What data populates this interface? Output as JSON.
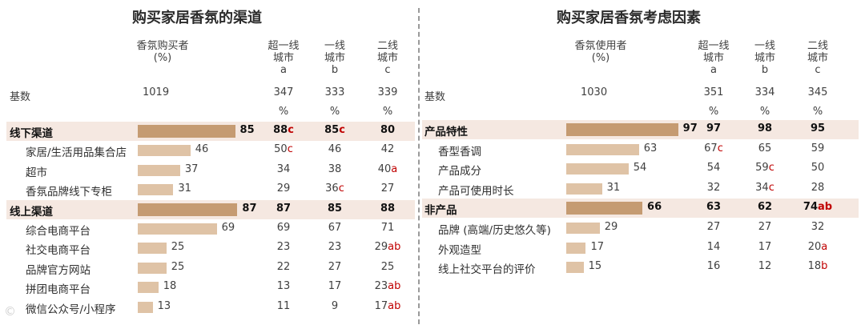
{
  "chart_data": [
    {
      "type": "bar",
      "title": "购买家居香氛的渠道",
      "column_headers": [
        "香氛购买者\n(%)",
        "超一线\n城市\na",
        "一线\n城市\nb",
        "二线\n城市\nc"
      ],
      "basis_label": "基数",
      "basis_values": [
        "1019",
        "347",
        "333",
        "339"
      ],
      "pct_marks": [
        "%",
        "%",
        "%"
      ],
      "rows": [
        {
          "label": "线下渠道",
          "main": true,
          "value": 85,
          "cells": [
            {
              "v": "88",
              "s": "c"
            },
            {
              "v": "85",
              "s": "c"
            },
            {
              "v": "80",
              "s": ""
            }
          ]
        },
        {
          "label": "家居/生活用品集合店",
          "main": false,
          "value": 46,
          "cells": [
            {
              "v": "50",
              "s": "c"
            },
            {
              "v": "46",
              "s": ""
            },
            {
              "v": "42",
              "s": ""
            }
          ]
        },
        {
          "label": "超市",
          "main": false,
          "value": 37,
          "cells": [
            {
              "v": "34",
              "s": ""
            },
            {
              "v": "38",
              "s": ""
            },
            {
              "v": "40",
              "s": "a"
            }
          ]
        },
        {
          "label": "香氛品牌线下专柜",
          "main": false,
          "value": 31,
          "cells": [
            {
              "v": "29",
              "s": ""
            },
            {
              "v": "36",
              "s": "c"
            },
            {
              "v": "27",
              "s": ""
            }
          ]
        },
        {
          "label": "线上渠道",
          "main": true,
          "value": 87,
          "cells": [
            {
              "v": "87",
              "s": ""
            },
            {
              "v": "85",
              "s": ""
            },
            {
              "v": "88",
              "s": ""
            }
          ]
        },
        {
          "label": "综合电商平台",
          "main": false,
          "value": 69,
          "cells": [
            {
              "v": "69",
              "s": ""
            },
            {
              "v": "67",
              "s": ""
            },
            {
              "v": "71",
              "s": ""
            }
          ]
        },
        {
          "label": "社交电商平台",
          "main": false,
          "value": 25,
          "cells": [
            {
              "v": "23",
              "s": ""
            },
            {
              "v": "23",
              "s": ""
            },
            {
              "v": "29",
              "s": "ab"
            }
          ]
        },
        {
          "label": "品牌官方网站",
          "main": false,
          "value": 25,
          "cells": [
            {
              "v": "22",
              "s": ""
            },
            {
              "v": "27",
              "s": ""
            },
            {
              "v": "25",
              "s": ""
            }
          ]
        },
        {
          "label": "拼团电商平台",
          "main": false,
          "value": 18,
          "cells": [
            {
              "v": "13",
              "s": ""
            },
            {
              "v": "17",
              "s": ""
            },
            {
              "v": "23",
              "s": "ab"
            }
          ]
        },
        {
          "label": "微信公众号/小程序",
          "main": false,
          "value": 13,
          "cells": [
            {
              "v": "11",
              "s": ""
            },
            {
              "v": "9",
              "s": ""
            },
            {
              "v": "17",
              "s": "ab"
            }
          ]
        }
      ]
    },
    {
      "type": "bar",
      "title": "购买家居香氛考虑因素",
      "column_headers": [
        "香氛使用者\n(%)",
        "超一线\n城市\na",
        "一线\n城市\nb",
        "二线\n城市\nc"
      ],
      "basis_label": "基数",
      "basis_values": [
        "1030",
        "351",
        "334",
        "345"
      ],
      "pct_marks": [
        "%",
        "%",
        "%"
      ],
      "rows": [
        {
          "label": "产品特性",
          "main": true,
          "value": 97,
          "cells": [
            {
              "v": "97",
              "s": ""
            },
            {
              "v": "98",
              "s": ""
            },
            {
              "v": "95",
              "s": ""
            }
          ]
        },
        {
          "label": "香型香调",
          "main": false,
          "value": 63,
          "cells": [
            {
              "v": "67",
              "s": "c"
            },
            {
              "v": "65",
              "s": ""
            },
            {
              "v": "59",
              "s": ""
            }
          ]
        },
        {
          "label": "产品成分",
          "main": false,
          "value": 54,
          "cells": [
            {
              "v": "54",
              "s": ""
            },
            {
              "v": "59",
              "s": "c"
            },
            {
              "v": "50",
              "s": ""
            }
          ]
        },
        {
          "label": "产品可使用时长",
          "main": false,
          "value": 31,
          "cells": [
            {
              "v": "32",
              "s": ""
            },
            {
              "v": "34",
              "s": "c"
            },
            {
              "v": "28",
              "s": ""
            }
          ]
        },
        {
          "label": "非产品",
          "main": true,
          "value": 66,
          "cells": [
            {
              "v": "63",
              "s": ""
            },
            {
              "v": "62",
              "s": ""
            },
            {
              "v": "74",
              "s": "ab"
            }
          ]
        },
        {
          "label": "品牌 (高端/历史悠久等)",
          "main": false,
          "value": 29,
          "cells": [
            {
              "v": "27",
              "s": ""
            },
            {
              "v": "27",
              "s": ""
            },
            {
              "v": "32",
              "s": ""
            }
          ]
        },
        {
          "label": "外观造型",
          "main": false,
          "value": 17,
          "cells": [
            {
              "v": "14",
              "s": ""
            },
            {
              "v": "17",
              "s": ""
            },
            {
              "v": "20",
              "s": "a"
            }
          ]
        },
        {
          "label": "线上社交平台的评价",
          "main": false,
          "value": 15,
          "cells": [
            {
              "v": "16",
              "s": ""
            },
            {
              "v": "12",
              "s": ""
            },
            {
              "v": "18",
              "s": "b"
            }
          ]
        }
      ]
    }
  ],
  "colors": {
    "bar_main": "#c59b72",
    "bar_sub": "#dfc3a6",
    "band": "#f5e8e1",
    "significance": "#c00000"
  },
  "watermark": "©"
}
